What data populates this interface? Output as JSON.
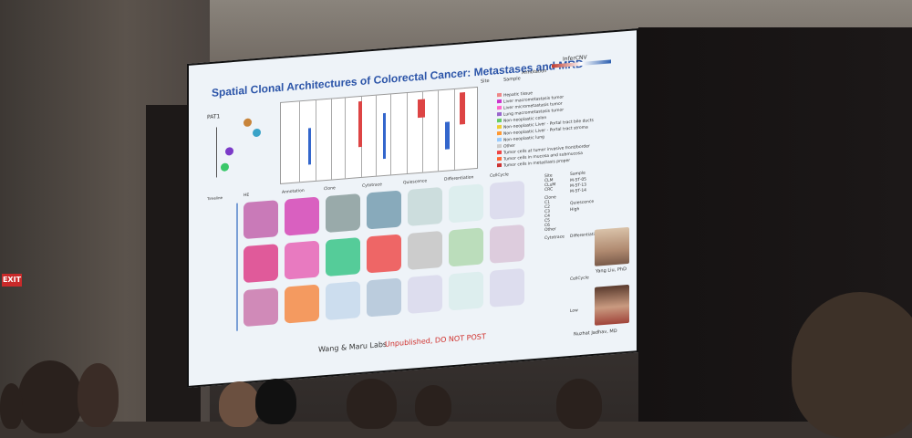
{
  "slide": {
    "title": "Spatial Clonal Architectures of Colorectal Cancer: Metastases and MRD",
    "infercnv_label": "InferCNV",
    "patient_label": "PAT1",
    "annotation_header": "Annotation",
    "site_header": "Site",
    "sample_header": "Sample",
    "annotations": [
      "Hepatic tissue",
      "Liver macrometastasis tumor",
      "Liver micrometastasis tumor",
      "Lung macrometastasis tumor",
      "Non-neoplastic colon",
      "Non-neoplastic Liver - Portal tract bile ducts",
      "Non-neoplastic Liver - Portal tract stroma",
      "Non-neoplastic lung",
      "Other",
      "Tumor cells at tumor invasive front/border",
      "Tumor cells in mucosa and submucosa",
      "Tumor cells in metastasis proper"
    ],
    "panel_headers": [
      "HE",
      "Annotation",
      "Clone",
      "Cytotrace",
      "Quiescence",
      "Differentiation",
      "CellCycle"
    ],
    "timeline_label": "Timeline",
    "footer_left": "Wang & Maru Labs",
    "footer_right": "Unpublished, DO NOT POST",
    "person1": "Yang Liu, PhD",
    "person2": "Nuzhat Jadhav, MD",
    "legend": {
      "site": "Site",
      "site_items": [
        "CLM",
        "CLuM",
        "CRC"
      ],
      "sample": "Sample",
      "sample_items": [
        "M-ST-05",
        "M-ST-13",
        "M-ST-14"
      ],
      "clone": "Clone",
      "clone_items": [
        "C1",
        "C2",
        "C3",
        "C4",
        "C5",
        "C6",
        "Other"
      ],
      "quiescence": "Quiescence",
      "differentiation": "Differentiation",
      "cytotrace": "Cytotrace",
      "cellcycle": "CellCycle",
      "high": "High",
      "low": "Low"
    }
  },
  "exit_sign": "EXIT",
  "colors": {
    "title_blue": "#2b54a8",
    "warning_red": "#d0312d",
    "slide_bg": "#eef3f8"
  }
}
